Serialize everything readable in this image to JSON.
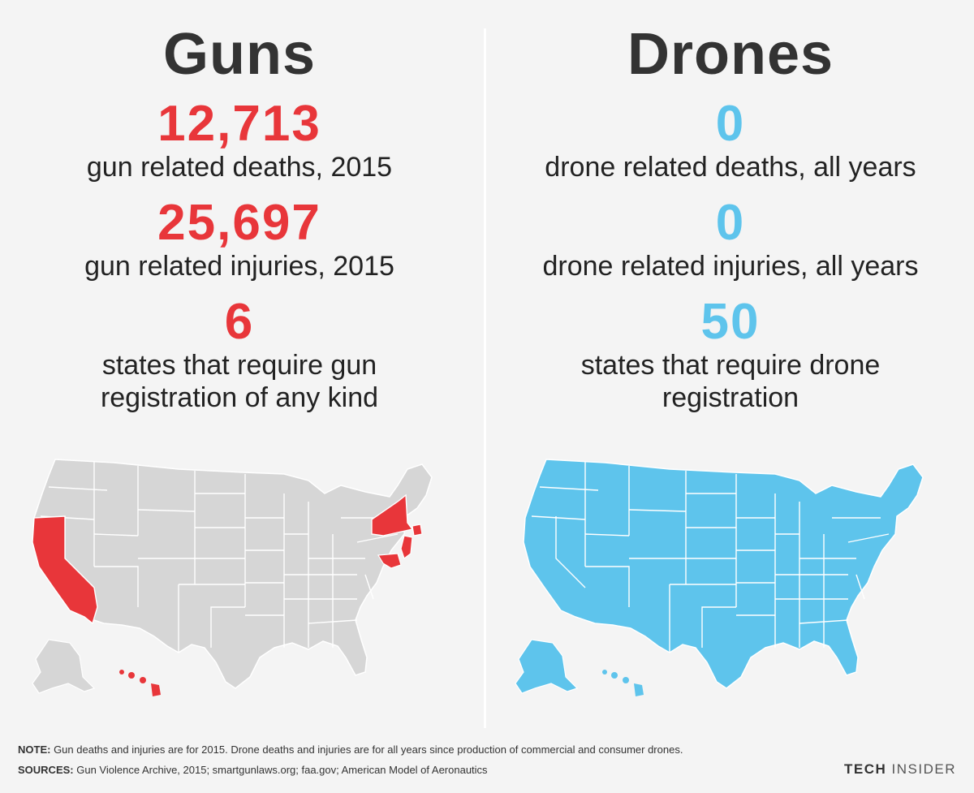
{
  "colors": {
    "guns": "#e8363a",
    "drones": "#5ec4ec",
    "map_gray": "#d6d6d6"
  },
  "chart_data": [
    {
      "type": "table",
      "title": "Guns",
      "stats": [
        {
          "value": "12,713",
          "label": "gun related deaths, 2015"
        },
        {
          "value": "25,697",
          "label": "gun related injuries, 2015"
        },
        {
          "value": "6",
          "label_line1": "states that require gun",
          "label_line2": "registration of any kind"
        }
      ],
      "map": {
        "type": "choropleth",
        "highlighted_states": [
          "California",
          "New York",
          "New Jersey",
          "Connecticut",
          "Maryland",
          "Hawaii"
        ]
      }
    },
    {
      "type": "table",
      "title": "Drones",
      "stats": [
        {
          "value": "0",
          "label": "drone related deaths, all years"
        },
        {
          "value": "0",
          "label": "drone related injuries, all years"
        },
        {
          "value": "50",
          "label_line1": "states that require drone",
          "label_line2": "registration"
        }
      ],
      "map": {
        "type": "choropleth",
        "highlighted_states": "all 50 states"
      }
    }
  ],
  "footer": {
    "note_label": "NOTE:",
    "note_text": " Gun deaths and injuries are for 2015. Drone deaths and injuries are for all years since production of commercial and consumer drones.",
    "sources_label": "SOURCES:",
    "sources_text": " Gun Violence Archive, 2015; smartgunlaws.org; faa.gov; American Model of Aeronautics",
    "brand_a": "TECH",
    "brand_b": "INSIDER"
  }
}
